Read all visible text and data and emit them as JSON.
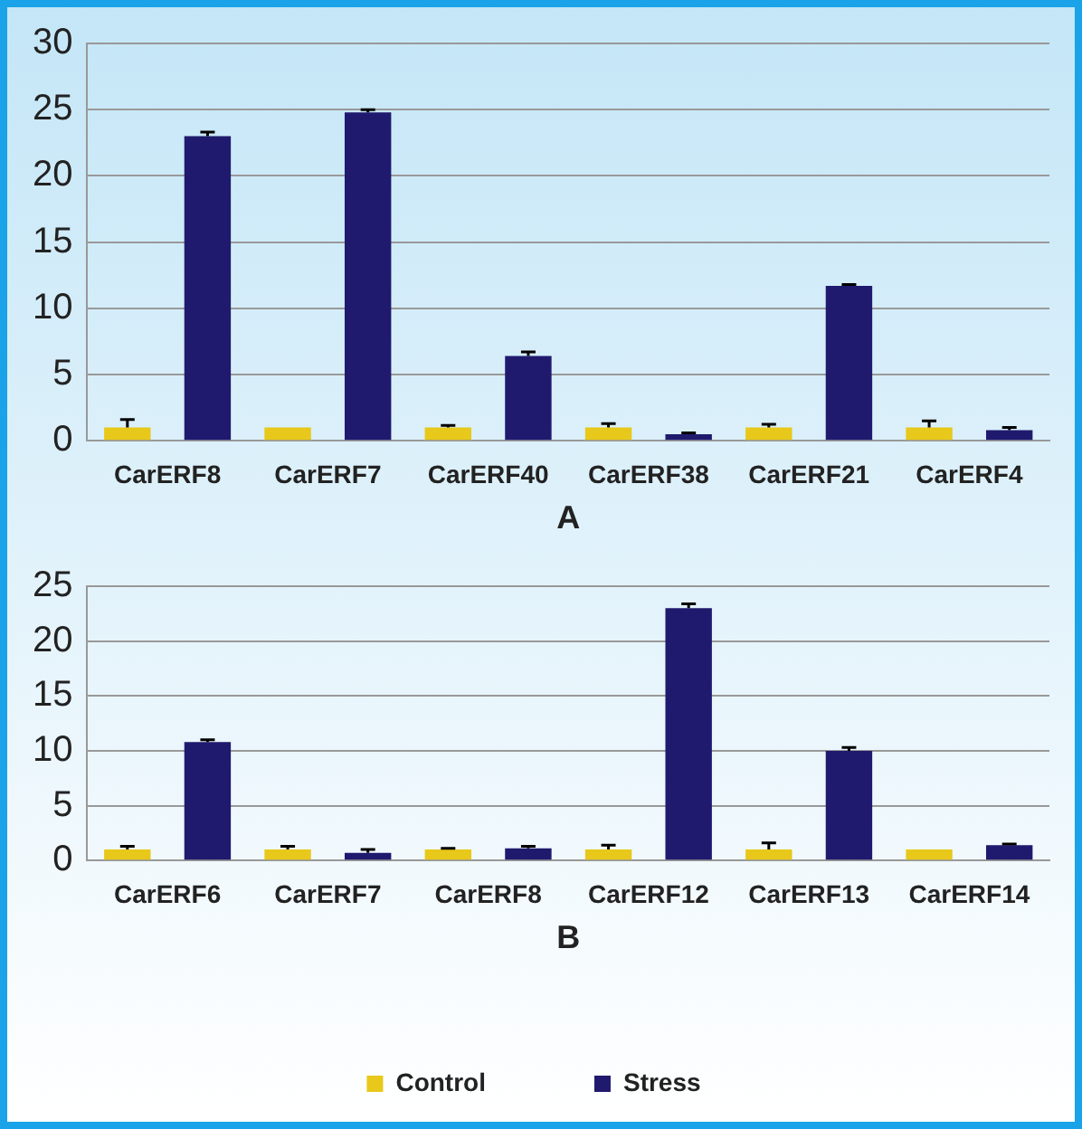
{
  "chart_data": [
    {
      "type": "bar",
      "xlabel": "A",
      "categories": [
        "CarERF8",
        "CarERF7",
        "CarERF40",
        "CarERF38",
        "CarERF21",
        "CarERF4"
      ],
      "ylim": [
        0,
        30
      ],
      "yticks": [
        0,
        5,
        10,
        15,
        20,
        25,
        30
      ],
      "grid": "y",
      "legend": false,
      "series": [
        {
          "color": "#e8c81a",
          "values": [
            1,
            1,
            1,
            1,
            1,
            1
          ],
          "errors": [
            [
              1,
              1.6
            ],
            null,
            [
              1,
              1.15
            ],
            [
              1,
              1.3
            ],
            [
              1,
              1.25
            ],
            [
              1,
              1.5
            ]
          ]
        },
        {
          "color": "#1f1a6e",
          "values": [
            23,
            24.8,
            6.4,
            0.5,
            11.7,
            0.8
          ],
          "errors": [
            [
              23,
              23.3
            ],
            [
              24.8,
              25
            ],
            [
              6.4,
              6.7
            ],
            [
              0.5,
              0.6
            ],
            [
              11.7,
              11.8
            ],
            [
              0.8,
              1
            ]
          ]
        }
      ]
    },
    {
      "type": "bar",
      "xlabel": "B",
      "categories": [
        "CarERF6",
        "CarERF7",
        "CarERF8",
        "CarERF12",
        "CarERF13",
        "CarERF14"
      ],
      "ylim": [
        0,
        25
      ],
      "yticks": [
        0,
        5,
        10,
        15,
        20,
        25
      ],
      "grid": "y",
      "legend": "bottom",
      "series": [
        {
          "name": "Control",
          "color": "#e8c81a",
          "values": [
            1,
            1,
            1,
            1,
            1,
            1
          ],
          "errors": [
            [
              1,
              1.3
            ],
            [
              1,
              1.3
            ],
            [
              1,
              1.1
            ],
            [
              1,
              1.4
            ],
            [
              1,
              1.6
            ],
            null
          ]
        },
        {
          "name": "Stress",
          "color": "#1f1a6e",
          "values": [
            10.8,
            0.7,
            1.1,
            23,
            10,
            1.4
          ],
          "errors": [
            [
              10.8,
              11
            ],
            [
              0.7,
              1
            ],
            [
              1.1,
              1.3
            ],
            [
              23,
              23.4
            ],
            [
              10,
              10.3
            ],
            [
              1.4,
              1.5
            ]
          ]
        }
      ]
    }
  ]
}
